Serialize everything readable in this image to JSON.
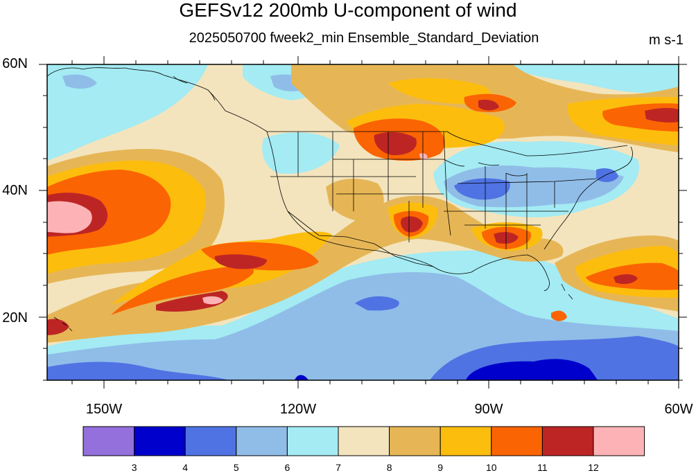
{
  "title": "GEFSv12 200mb U-component of wind",
  "subtitle": "2025050700 fweek2_min Ensemble_Standard_Deviation",
  "units": "m s-1",
  "map": {
    "region": "North Pacific, North America and western North Atlantic",
    "lon_range": [
      -160,
      -60
    ],
    "lat_range": [
      10,
      60
    ],
    "lat_ticks": [
      "60N",
      "40N",
      "20N"
    ],
    "lon_ticks": [
      "150W",
      "120W",
      "90W",
      "60W"
    ]
  },
  "colorbar": {
    "labels": [
      "3",
      "4",
      "5",
      "6",
      "7",
      "8",
      "9",
      "10",
      "11",
      "12"
    ],
    "colors": [
      "#9370db",
      "#0000cd",
      "#4f73e3",
      "#90bde8",
      "#a4ebf3",
      "#f3e4bd",
      "#e6b656",
      "#fdbd0d",
      "#fb6402",
      "#bd2525",
      "#fdb3b5"
    ]
  }
}
